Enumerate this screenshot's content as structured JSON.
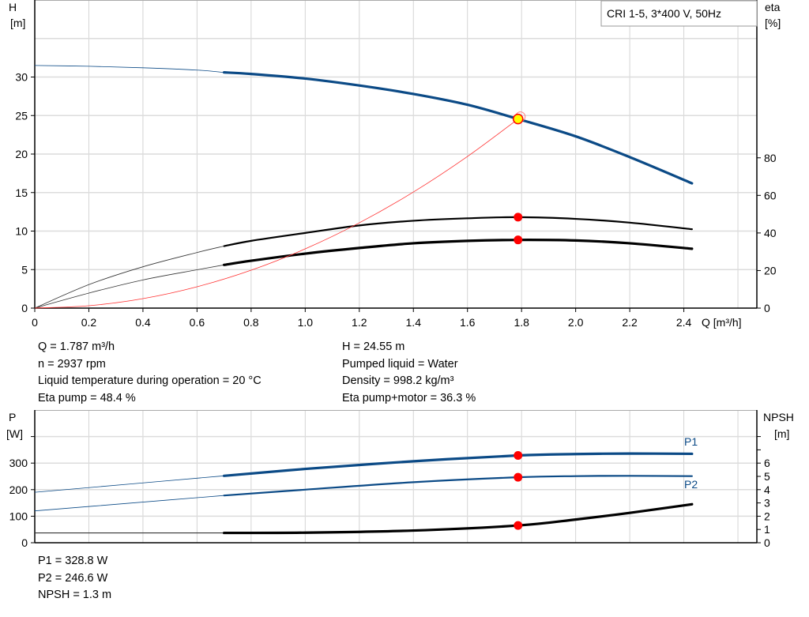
{
  "chart_data": [
    {
      "type": "line",
      "title": "CRI 1-5, 3*400 V, 50Hz",
      "xlabel": "Q [m³/h]",
      "ylabel_left": {
        "name": "H",
        "unit": "[m]"
      },
      "ylabel_right": {
        "name": "eta",
        "unit": "[%]"
      },
      "xlim": [
        0,
        2.67
      ],
      "ylim_left": [
        0,
        40
      ],
      "ylim_right": [
        0,
        164
      ],
      "x_ticks": [
        "0",
        "0.2",
        "0.4",
        "0.6",
        "0.8",
        "1.0",
        "1.2",
        "1.4",
        "1.6",
        "1.8",
        "2.0",
        "2.2",
        "2.4"
      ],
      "y_ticks_left": [
        "0",
        "5",
        "10",
        "15",
        "20",
        "25",
        "30"
      ],
      "y_ticks_right": [
        "0",
        "20",
        "40",
        "60",
        "80"
      ],
      "grid": true,
      "operating_range_start_q": 0.7,
      "series": [
        {
          "id": "H",
          "axis": "left",
          "color": "#0b4a86",
          "x": [
            0,
            0.2,
            0.4,
            0.6,
            0.7,
            0.8,
            1.0,
            1.2,
            1.4,
            1.6,
            1.787,
            2.0,
            2.2,
            2.43
          ],
          "y": [
            31.5,
            31.4,
            31.2,
            30.9,
            30.6,
            30.4,
            29.8,
            28.9,
            27.8,
            26.4,
            24.55,
            22.3,
            19.6,
            16.2
          ]
        },
        {
          "id": "eta_pump",
          "axis": "right",
          "color": "#000000",
          "x": [
            0,
            0.2,
            0.4,
            0.6,
            0.7,
            0.8,
            1.0,
            1.2,
            1.4,
            1.6,
            1.787,
            2.0,
            2.2,
            2.43
          ],
          "y": [
            0,
            12.5,
            22,
            29.6,
            33,
            35.8,
            40,
            44,
            46.5,
            47.8,
            48.4,
            47.5,
            45.5,
            42
          ]
        },
        {
          "id": "eta_pump_motor",
          "axis": "right",
          "color": "#000000",
          "x": [
            0,
            0.2,
            0.4,
            0.6,
            0.7,
            0.8,
            1.0,
            1.2,
            1.4,
            1.6,
            1.787,
            2.0,
            2.2,
            2.43
          ],
          "y": [
            0,
            8,
            15,
            20.4,
            23,
            25.2,
            29,
            32,
            34.5,
            35.8,
            36.3,
            36,
            34.5,
            31.6
          ]
        },
        {
          "id": "system_curve",
          "axis": "left",
          "color": "#ff3030",
          "x": [
            0,
            0.2,
            0.4,
            0.6,
            0.8,
            1.0,
            1.2,
            1.4,
            1.6,
            1.787
          ],
          "y": [
            0,
            0.31,
            1.23,
            2.77,
            4.92,
            7.69,
            11.07,
            15.07,
            19.69,
            24.55
          ]
        }
      ],
      "duty_points": [
        {
          "series": "H",
          "q": 1.787,
          "value": 24.55,
          "color": "#ffff00"
        },
        {
          "series": "eta_pump",
          "q": 1.787,
          "value": 48.4,
          "color": "#ff0000"
        },
        {
          "series": "eta_pump_motor",
          "q": 1.787,
          "value": 36.3,
          "color": "#ff0000"
        }
      ]
    },
    {
      "type": "line",
      "ylabel_left": {
        "name": "P",
        "unit": "[W]"
      },
      "ylabel_right": {
        "name": "NPSH",
        "unit": "[m]"
      },
      "xlim": [
        0,
        2.67
      ],
      "ylim_left": [
        0,
        500
      ],
      "ylim_right": [
        0,
        10
      ],
      "y_ticks_left": [
        "0",
        "100",
        "200",
        "300"
      ],
      "y_ticks_right": [
        "0",
        "1",
        "2",
        "3",
        "4",
        "5",
        "6"
      ],
      "grid": true,
      "operating_range_start_q": 0.7,
      "series": [
        {
          "id": "P1",
          "name": "P1",
          "axis": "left",
          "color": "#0b4a86",
          "x": [
            0,
            0.35,
            0.7,
            1.0,
            1.4,
            1.787,
            2.0,
            2.2,
            2.43
          ],
          "y": [
            190,
            221,
            252,
            278,
            307,
            328.8,
            334,
            336,
            335
          ]
        },
        {
          "id": "P2",
          "name": "P2",
          "axis": "left",
          "color": "#0b4a86",
          "x": [
            0,
            0.35,
            0.7,
            1.0,
            1.4,
            1.787,
            2.0,
            2.2,
            2.43
          ],
          "y": [
            120,
            149,
            178,
            200,
            228,
            246.6,
            251,
            252,
            251
          ]
        },
        {
          "id": "NPSH",
          "axis": "right",
          "color": "#000000",
          "x": [
            0,
            0.7,
            1.0,
            1.4,
            1.787,
            2.0,
            2.2,
            2.43
          ],
          "y": [
            0.74,
            0.74,
            0.76,
            0.92,
            1.3,
            1.75,
            2.25,
            2.9
          ]
        }
      ],
      "duty_points": [
        {
          "series": "P1",
          "q": 1.787,
          "value": 328.8,
          "color": "#ff0000"
        },
        {
          "series": "P2",
          "q": 1.787,
          "value": 246.6,
          "color": "#ff0000"
        },
        {
          "series": "NPSH",
          "q": 1.787,
          "value": 1.3,
          "color": "#ff0000"
        }
      ]
    }
  ],
  "info_top": {
    "left": [
      "Q = 1.787 m³/h",
      "n = 2937 rpm",
      "Liquid temperature during operation = 20 °C",
      "Eta pump = 48.4 %"
    ],
    "right": [
      "H = 24.55 m",
      "Pumped liquid = Water",
      "Density = 998.2 kg/m³",
      "Eta pump+motor = 36.3 %"
    ]
  },
  "info_bottom": [
    "P1 = 328.8 W",
    "P2 = 246.6 W",
    "NPSH = 1.3 m"
  ]
}
